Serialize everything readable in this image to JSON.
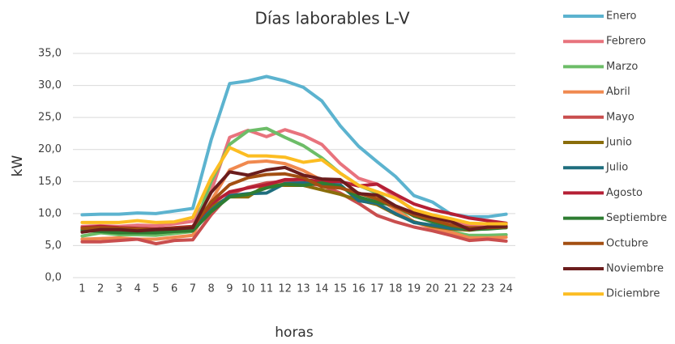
{
  "chart_data": {
    "type": "line",
    "title": "Días laborables L-V",
    "x_label": "horas",
    "y_label": "kW",
    "categories": [
      "1",
      "2",
      "3",
      "4",
      "5",
      "6",
      "7",
      "8",
      "9",
      "10",
      "11",
      "12",
      "13",
      "14",
      "15",
      "16",
      "17",
      "18",
      "19",
      "20",
      "21",
      "22",
      "23",
      "24"
    ],
    "ylim": [
      0,
      35
    ],
    "yticks": [
      {
        "value": 0,
        "label": "0,0"
      },
      {
        "value": 5,
        "label": "5,0"
      },
      {
        "value": 10,
        "label": "10,0"
      },
      {
        "value": 15,
        "label": "15,0"
      },
      {
        "value": 20,
        "label": "20,0"
      },
      {
        "value": 25,
        "label": "25,0"
      },
      {
        "value": 30,
        "label": "30,0"
      },
      {
        "value": 35,
        "label": "35,0"
      }
    ],
    "grid": true,
    "legend": "right",
    "series": [
      {
        "name": "Enero",
        "color": "#5cb3cf",
        "values": [
          9.8,
          9.9,
          9.9,
          10.1,
          10.0,
          10.4,
          10.8,
          21.5,
          30.3,
          30.7,
          31.4,
          30.7,
          29.7,
          27.6,
          23.7,
          20.5,
          18.1,
          15.8,
          12.8,
          11.8,
          9.9,
          9.5,
          9.5,
          9.9
        ]
      },
      {
        "name": "Febrero",
        "color": "#e8737d",
        "values": [
          8.0,
          8.1,
          8.0,
          8.2,
          8.1,
          8.4,
          8.8,
          13.5,
          21.9,
          23.0,
          22.0,
          23.1,
          22.2,
          20.8,
          17.8,
          15.5,
          14.6,
          12.6,
          10.4,
          9.6,
          8.6,
          8.2,
          8.0,
          8.3
        ]
      },
      {
        "name": "Marzo",
        "color": "#6dbd68",
        "values": [
          6.5,
          7.0,
          6.7,
          6.7,
          6.6,
          6.9,
          7.2,
          15.0,
          20.8,
          22.9,
          23.3,
          21.9,
          20.6,
          18.7,
          16.3,
          14.4,
          13.2,
          11.0,
          8.6,
          8.1,
          7.2,
          6.6,
          6.6,
          6.7
        ]
      },
      {
        "name": "Abril",
        "color": "#f0894f",
        "values": [
          6.0,
          6.1,
          6.2,
          6.0,
          6.0,
          6.3,
          6.6,
          12.0,
          16.8,
          18.0,
          18.2,
          17.8,
          16.7,
          15.2,
          14.0,
          13.1,
          12.5,
          10.6,
          8.7,
          7.7,
          7.1,
          6.2,
          6.2,
          6.3
        ]
      },
      {
        "name": "Mayo",
        "color": "#c94e4e",
        "values": [
          5.6,
          5.6,
          5.8,
          6.0,
          5.3,
          5.8,
          5.9,
          9.8,
          13.0,
          14.1,
          14.8,
          15.0,
          14.7,
          14.4,
          13.2,
          11.6,
          9.7,
          8.7,
          7.9,
          7.3,
          6.6,
          5.8,
          6.0,
          5.7
        ]
      },
      {
        "name": "Junio",
        "color": "#8a6d0b",
        "values": [
          7.3,
          7.4,
          7.3,
          7.2,
          7.1,
          7.3,
          7.5,
          11.0,
          12.6,
          12.6,
          14.5,
          14.4,
          14.4,
          13.7,
          13.0,
          12.1,
          11.4,
          9.9,
          8.7,
          8.0,
          7.6,
          7.4,
          7.7,
          7.8
        ]
      },
      {
        "name": "Julio",
        "color": "#1f6e7e",
        "values": [
          7.5,
          7.7,
          7.5,
          7.4,
          7.3,
          7.6,
          7.8,
          10.5,
          12.8,
          13.1,
          13.2,
          14.7,
          14.8,
          14.6,
          14.5,
          12.0,
          11.6,
          10.0,
          8.6,
          8.2,
          7.7,
          7.6,
          7.8,
          7.9
        ]
      },
      {
        "name": "Agosto",
        "color": "#b51f35",
        "values": [
          7.8,
          8.0,
          7.8,
          7.7,
          7.6,
          7.8,
          8.0,
          11.5,
          13.4,
          14.0,
          14.5,
          15.3,
          15.3,
          15.0,
          15.0,
          14.3,
          14.6,
          13.0,
          11.5,
          10.6,
          10.0,
          9.3,
          8.9,
          8.5
        ]
      },
      {
        "name": "Septiembre",
        "color": "#2e7d32",
        "values": [
          7.4,
          7.2,
          7.0,
          7.0,
          7.0,
          7.2,
          7.3,
          10.3,
          12.6,
          13.0,
          14.0,
          14.6,
          14.4,
          14.8,
          14.2,
          12.6,
          11.8,
          11.2,
          9.6,
          8.7,
          8.1,
          7.5,
          7.6,
          7.8
        ]
      },
      {
        "name": "Octubre",
        "color": "#a34f12",
        "values": [
          7.7,
          7.8,
          7.7,
          7.6,
          7.5,
          7.7,
          7.9,
          11.8,
          14.5,
          15.6,
          16.1,
          16.2,
          15.6,
          14.2,
          14.0,
          13.2,
          12.3,
          11.0,
          9.8,
          9.0,
          8.2,
          7.8,
          7.8,
          7.9
        ]
      },
      {
        "name": "Noviembre",
        "color": "#6b1d1d",
        "values": [
          7.1,
          7.5,
          7.5,
          7.3,
          7.5,
          7.6,
          7.8,
          13.3,
          16.5,
          16.0,
          16.8,
          17.2,
          16.0,
          15.4,
          15.3,
          13.1,
          12.9,
          11.2,
          10.1,
          9.4,
          8.8,
          7.5,
          7.9,
          8.0
        ]
      },
      {
        "name": "Diciembre",
        "color": "#fcbd22",
        "values": [
          8.6,
          8.6,
          8.6,
          8.9,
          8.6,
          8.7,
          9.4,
          15.6,
          20.3,
          19.0,
          19.0,
          18.8,
          18.0,
          18.4,
          16.3,
          14.4,
          13.4,
          12.4,
          10.6,
          9.8,
          9.2,
          8.5,
          8.4,
          8.4
        ]
      }
    ]
  }
}
